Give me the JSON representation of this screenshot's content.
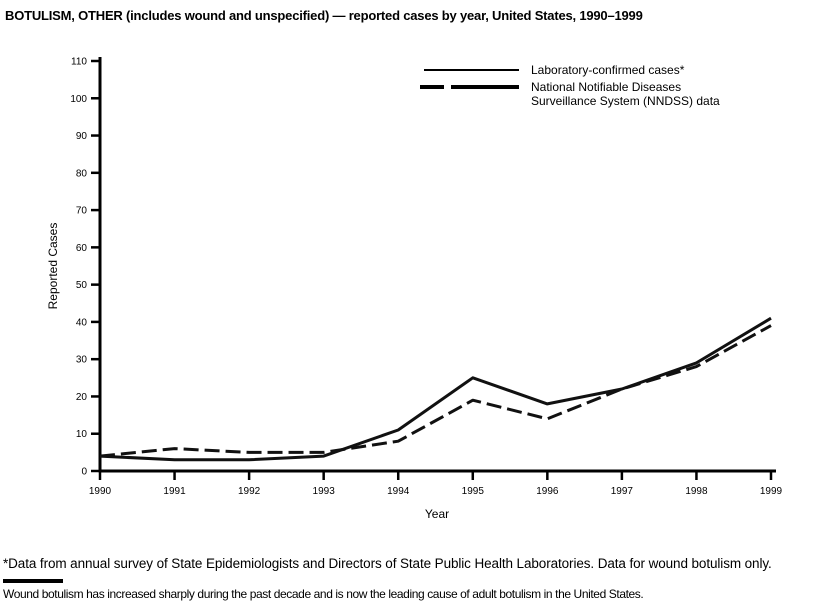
{
  "page": {
    "title": "BOTULISM, OTHER (includes wound and unspecified) — reported cases by year, United States, 1990–1999"
  },
  "axes": {
    "xlabel": "Year",
    "ylabel": "Reported Cases"
  },
  "legend": {
    "items": [
      {
        "label": "Laboratory-confirmed cases*",
        "style": "solid"
      },
      {
        "label_line1": "National Notifiable Diseases",
        "label_line2": "Surveillance System (NNDSS) data",
        "style": "dashed"
      }
    ]
  },
  "footnotes": {
    "asterisk_note": "*Data from annual survey of State Epidemiologists and Directors of State Public Health Laboratories. Data for wound botulism only.",
    "bottom_note": "Wound botulism has increased sharply during the past decade and is now the leading cause of adult botulism in the United States."
  },
  "chart_data": {
    "type": "line",
    "title": "BOTULISM, OTHER (includes wound and unspecified) — reported cases by year, United States, 1990–1999",
    "x": [
      1990,
      1991,
      1992,
      1993,
      1994,
      1995,
      1996,
      1997,
      1998,
      1999
    ],
    "xlabel": "Year",
    "ylabel": "Reported Cases",
    "ylim": [
      0,
      110
    ],
    "ytick_step": 10,
    "grid": false,
    "legend_position": "top-right-inside",
    "colors": {
      "line": "#111111",
      "background": "#ffffff"
    },
    "series": [
      {
        "name": "Laboratory-confirmed cases*",
        "line_style": "solid",
        "values": [
          4,
          3,
          3,
          4,
          11,
          25,
          18,
          22,
          29,
          41
        ]
      },
      {
        "name": "National Notifiable Diseases Surveillance System (NNDSS) data",
        "line_style": "dashed",
        "values": [
          4,
          6,
          5,
          5,
          8,
          19,
          14,
          22,
          28,
          39
        ]
      }
    ]
  }
}
